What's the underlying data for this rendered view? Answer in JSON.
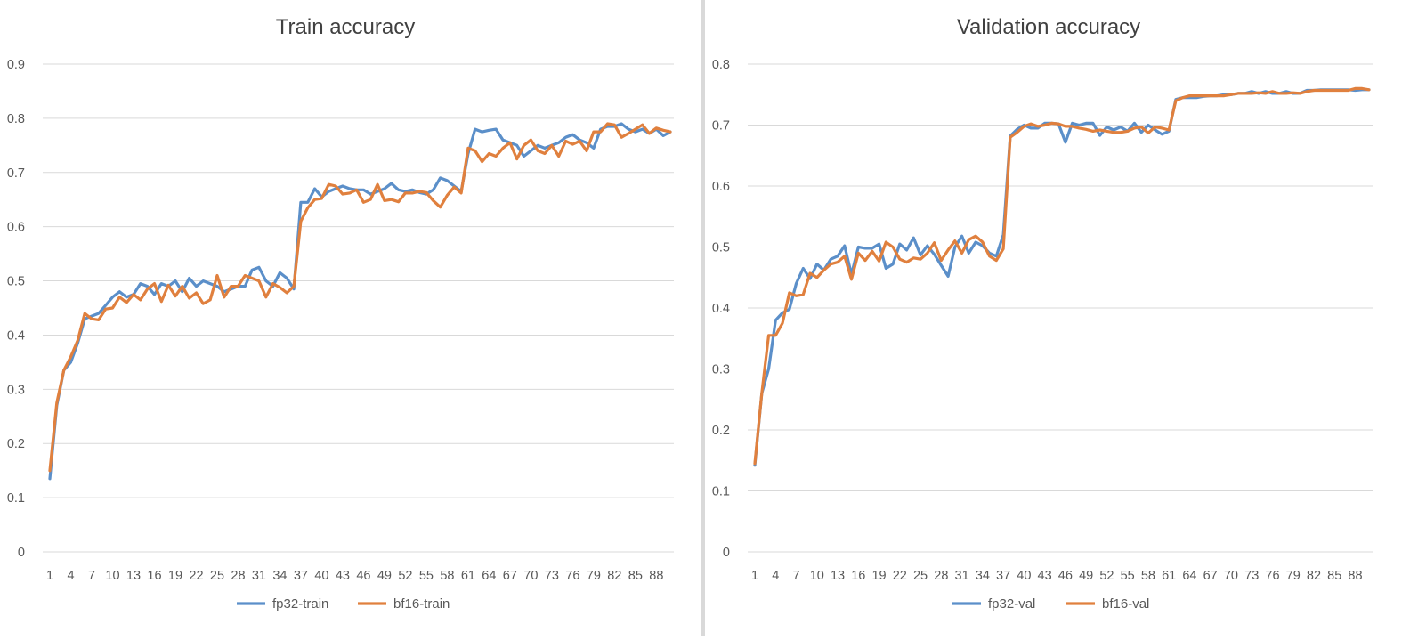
{
  "charts": [
    {
      "title": "Train accuracy",
      "ylim": [
        0,
        0.9
      ],
      "yticks": [
        "0",
        "0.1",
        "0.2",
        "0.3",
        "0.4",
        "0.5",
        "0.6",
        "0.7",
        "0.8",
        "0.9"
      ],
      "xticks": [
        "1",
        "4",
        "7",
        "10",
        "13",
        "16",
        "19",
        "22",
        "25",
        "28",
        "31",
        "34",
        "37",
        "40",
        "43",
        "46",
        "49",
        "52",
        "55",
        "58",
        "61",
        "64",
        "67",
        "70",
        "73",
        "76",
        "79",
        "82",
        "85",
        "88"
      ],
      "legend": [
        "fp32-train",
        "bf16-train"
      ]
    },
    {
      "title": "Validation accuracy",
      "ylim": [
        0,
        0.8
      ],
      "yticks": [
        "0",
        "0.1",
        "0.2",
        "0.3",
        "0.4",
        "0.5",
        "0.6",
        "0.7",
        "0.8"
      ],
      "xticks": [
        "1",
        "4",
        "7",
        "10",
        "13",
        "16",
        "19",
        "22",
        "25",
        "28",
        "31",
        "34",
        "37",
        "40",
        "43",
        "46",
        "49",
        "52",
        "55",
        "58",
        "61",
        "64",
        "67",
        "70",
        "73",
        "76",
        "79",
        "82",
        "85",
        "88"
      ],
      "legend": [
        "fp32-val",
        "bf16-val"
      ]
    }
  ],
  "colors": {
    "fp32": "#5b8fc9",
    "bf16": "#e0803e",
    "grid": "#d9d9d9",
    "axis_text": "#595959"
  },
  "chart_data": [
    {
      "type": "line",
      "title": "Train accuracy",
      "x": [
        1,
        2,
        3,
        4,
        5,
        6,
        7,
        8,
        9,
        10,
        11,
        12,
        13,
        14,
        15,
        16,
        17,
        18,
        19,
        20,
        21,
        22,
        23,
        24,
        25,
        26,
        27,
        28,
        29,
        30,
        31,
        32,
        33,
        34,
        35,
        36,
        37,
        38,
        39,
        40,
        41,
        42,
        43,
        44,
        45,
        46,
        47,
        48,
        49,
        50,
        51,
        52,
        53,
        54,
        55,
        56,
        57,
        58,
        59,
        60,
        61,
        62,
        63,
        64,
        65,
        66,
        67,
        68,
        69,
        70,
        71,
        72,
        73,
        74,
        75,
        76,
        77,
        78,
        79,
        80,
        81,
        82,
        83,
        84,
        85,
        86,
        87,
        88,
        89,
        90
      ],
      "xlim": [
        1,
        90
      ],
      "ylim": [
        0,
        0.9
      ],
      "grid": true,
      "legend_position": "bottom",
      "series": [
        {
          "name": "fp32-train",
          "color": "#5b8fc9",
          "values": [
            0.135,
            0.27,
            0.335,
            0.35,
            0.385,
            0.43,
            0.435,
            0.44,
            0.455,
            0.47,
            0.48,
            0.47,
            0.475,
            0.495,
            0.49,
            0.475,
            0.495,
            0.49,
            0.5,
            0.48,
            0.505,
            0.49,
            0.5,
            0.495,
            0.49,
            0.48,
            0.485,
            0.49,
            0.49,
            0.52,
            0.525,
            0.5,
            0.49,
            0.515,
            0.505,
            0.485,
            0.645,
            0.645,
            0.67,
            0.655,
            0.665,
            0.67,
            0.675,
            0.67,
            0.668,
            0.668,
            0.66,
            0.665,
            0.67,
            0.68,
            0.668,
            0.665,
            0.668,
            0.663,
            0.66,
            0.668,
            0.69,
            0.685,
            0.675,
            0.665,
            0.735,
            0.78,
            0.775,
            0.778,
            0.78,
            0.76,
            0.755,
            0.75,
            0.73,
            0.74,
            0.75,
            0.745,
            0.75,
            0.755,
            0.765,
            0.77,
            0.76,
            0.755,
            0.745,
            0.78,
            0.785,
            0.785,
            0.79,
            0.78,
            0.775,
            0.78,
            0.772,
            0.78,
            0.768,
            0.775
          ]
        },
        {
          "name": "bf16-train",
          "color": "#e0803e",
          "values": [
            0.15,
            0.275,
            0.335,
            0.36,
            0.39,
            0.44,
            0.43,
            0.428,
            0.448,
            0.45,
            0.47,
            0.46,
            0.475,
            0.465,
            0.485,
            0.495,
            0.462,
            0.492,
            0.472,
            0.49,
            0.468,
            0.478,
            0.458,
            0.465,
            0.51,
            0.47,
            0.49,
            0.49,
            0.51,
            0.505,
            0.5,
            0.47,
            0.495,
            0.488,
            0.478,
            0.49,
            0.61,
            0.635,
            0.65,
            0.652,
            0.678,
            0.675,
            0.66,
            0.662,
            0.668,
            0.645,
            0.65,
            0.678,
            0.648,
            0.65,
            0.646,
            0.662,
            0.662,
            0.665,
            0.663,
            0.648,
            0.636,
            0.658,
            0.673,
            0.662,
            0.745,
            0.74,
            0.72,
            0.735,
            0.73,
            0.745,
            0.755,
            0.725,
            0.75,
            0.76,
            0.74,
            0.735,
            0.75,
            0.73,
            0.758,
            0.752,
            0.758,
            0.74,
            0.775,
            0.775,
            0.79,
            0.788,
            0.765,
            0.772,
            0.78,
            0.788,
            0.772,
            0.782,
            0.778,
            0.775
          ]
        }
      ]
    },
    {
      "type": "line",
      "title": "Validation accuracy",
      "x": [
        1,
        2,
        3,
        4,
        5,
        6,
        7,
        8,
        9,
        10,
        11,
        12,
        13,
        14,
        15,
        16,
        17,
        18,
        19,
        20,
        21,
        22,
        23,
        24,
        25,
        26,
        27,
        28,
        29,
        30,
        31,
        32,
        33,
        34,
        35,
        36,
        37,
        38,
        39,
        40,
        41,
        42,
        43,
        44,
        45,
        46,
        47,
        48,
        49,
        50,
        51,
        52,
        53,
        54,
        55,
        56,
        57,
        58,
        59,
        60,
        61,
        62,
        63,
        64,
        65,
        66,
        67,
        68,
        69,
        70,
        71,
        72,
        73,
        74,
        75,
        76,
        77,
        78,
        79,
        80,
        81,
        82,
        83,
        84,
        85,
        86,
        87,
        88,
        89,
        90
      ],
      "xlim": [
        1,
        90
      ],
      "ylim": [
        0,
        0.8
      ],
      "grid": true,
      "legend_position": "bottom",
      "series": [
        {
          "name": "fp32-val",
          "color": "#5b8fc9",
          "values": [
            0.142,
            0.26,
            0.3,
            0.38,
            0.392,
            0.398,
            0.44,
            0.465,
            0.448,
            0.472,
            0.462,
            0.48,
            0.485,
            0.502,
            0.455,
            0.5,
            0.498,
            0.498,
            0.505,
            0.465,
            0.472,
            0.505,
            0.495,
            0.515,
            0.487,
            0.502,
            0.488,
            0.47,
            0.452,
            0.5,
            0.518,
            0.49,
            0.508,
            0.502,
            0.49,
            0.485,
            0.52,
            0.682,
            0.693,
            0.7,
            0.695,
            0.695,
            0.703,
            0.703,
            0.702,
            0.672,
            0.703,
            0.7,
            0.703,
            0.703,
            0.683,
            0.697,
            0.692,
            0.697,
            0.69,
            0.703,
            0.688,
            0.7,
            0.692,
            0.685,
            0.69,
            0.742,
            0.745,
            0.745,
            0.745,
            0.747,
            0.748,
            0.748,
            0.75,
            0.75,
            0.752,
            0.752,
            0.755,
            0.752,
            0.755,
            0.752,
            0.752,
            0.755,
            0.752,
            0.752,
            0.757,
            0.757,
            0.758,
            0.758,
            0.758,
            0.758,
            0.758,
            0.757,
            0.758,
            0.758
          ]
        },
        {
          "name": "bf16-val",
          "color": "#e0803e",
          "values": [
            0.145,
            0.26,
            0.355,
            0.355,
            0.375,
            0.425,
            0.42,
            0.422,
            0.457,
            0.45,
            0.462,
            0.472,
            0.475,
            0.485,
            0.447,
            0.49,
            0.478,
            0.493,
            0.477,
            0.508,
            0.5,
            0.48,
            0.475,
            0.482,
            0.48,
            0.49,
            0.507,
            0.478,
            0.495,
            0.51,
            0.49,
            0.512,
            0.518,
            0.508,
            0.485,
            0.478,
            0.497,
            0.68,
            0.688,
            0.698,
            0.702,
            0.698,
            0.7,
            0.703,
            0.702,
            0.698,
            0.698,
            0.695,
            0.693,
            0.69,
            0.692,
            0.69,
            0.688,
            0.688,
            0.69,
            0.695,
            0.697,
            0.687,
            0.697,
            0.695,
            0.692,
            0.74,
            0.745,
            0.748,
            0.748,
            0.748,
            0.748,
            0.748,
            0.748,
            0.75,
            0.752,
            0.752,
            0.752,
            0.753,
            0.752,
            0.755,
            0.752,
            0.752,
            0.753,
            0.752,
            0.755,
            0.757,
            0.757,
            0.757,
            0.757,
            0.757,
            0.757,
            0.76,
            0.76,
            0.758
          ]
        }
      ]
    }
  ]
}
